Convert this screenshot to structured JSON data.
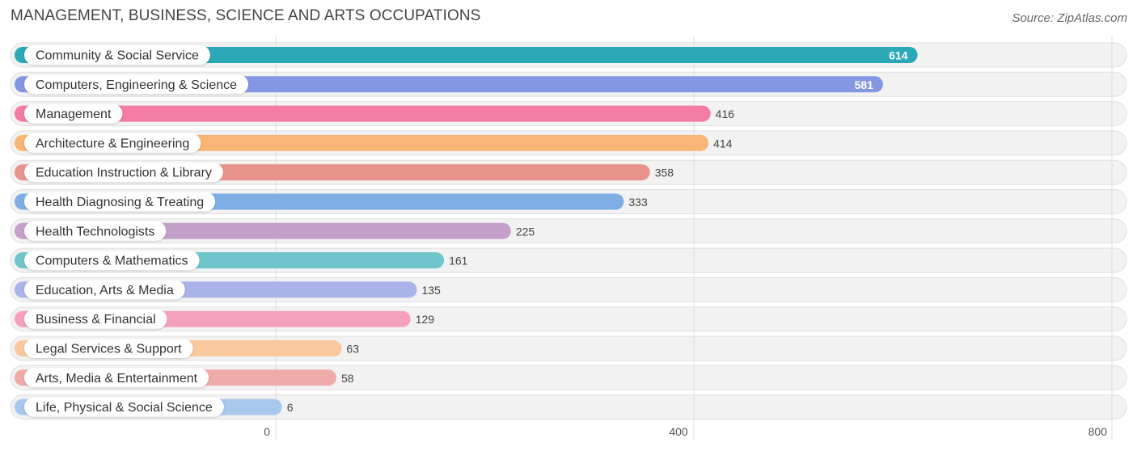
{
  "header": {
    "title": "MANAGEMENT, BUSINESS, SCIENCE AND ARTS OCCUPATIONS",
    "source": "Source: ZipAtlas.com"
  },
  "chart_data": {
    "type": "bar",
    "orientation": "horizontal",
    "title": "MANAGEMENT, BUSINESS, SCIENCE AND ARTS OCCUPATIONS",
    "categories": [
      "Community & Social Service",
      "Computers, Engineering & Science",
      "Management",
      "Architecture & Engineering",
      "Education Instruction & Library",
      "Health Diagnosing & Treating",
      "Health Technologists",
      "Computers & Mathematics",
      "Education, Arts & Media",
      "Business & Financial",
      "Legal Services & Support",
      "Arts, Media & Entertainment",
      "Life, Physical & Social Science"
    ],
    "values": [
      614,
      581,
      416,
      414,
      358,
      333,
      225,
      161,
      135,
      129,
      63,
      58,
      6
    ],
    "colors": [
      "#2aa8b6",
      "#8497e2",
      "#f47ba3",
      "#f9b574",
      "#e9938d",
      "#7faee5",
      "#c4a0cb",
      "#6ec6cc",
      "#aab3ea",
      "#f5a0bc",
      "#f9c89d",
      "#efaba9",
      "#a9c8ee"
    ],
    "xlim": [
      0,
      800
    ],
    "xticks": [
      0,
      400,
      800
    ],
    "xtick_labels": [
      "0",
      "400",
      "800"
    ],
    "grid": true,
    "value_labels_inside_for": [
      614,
      581
    ]
  }
}
